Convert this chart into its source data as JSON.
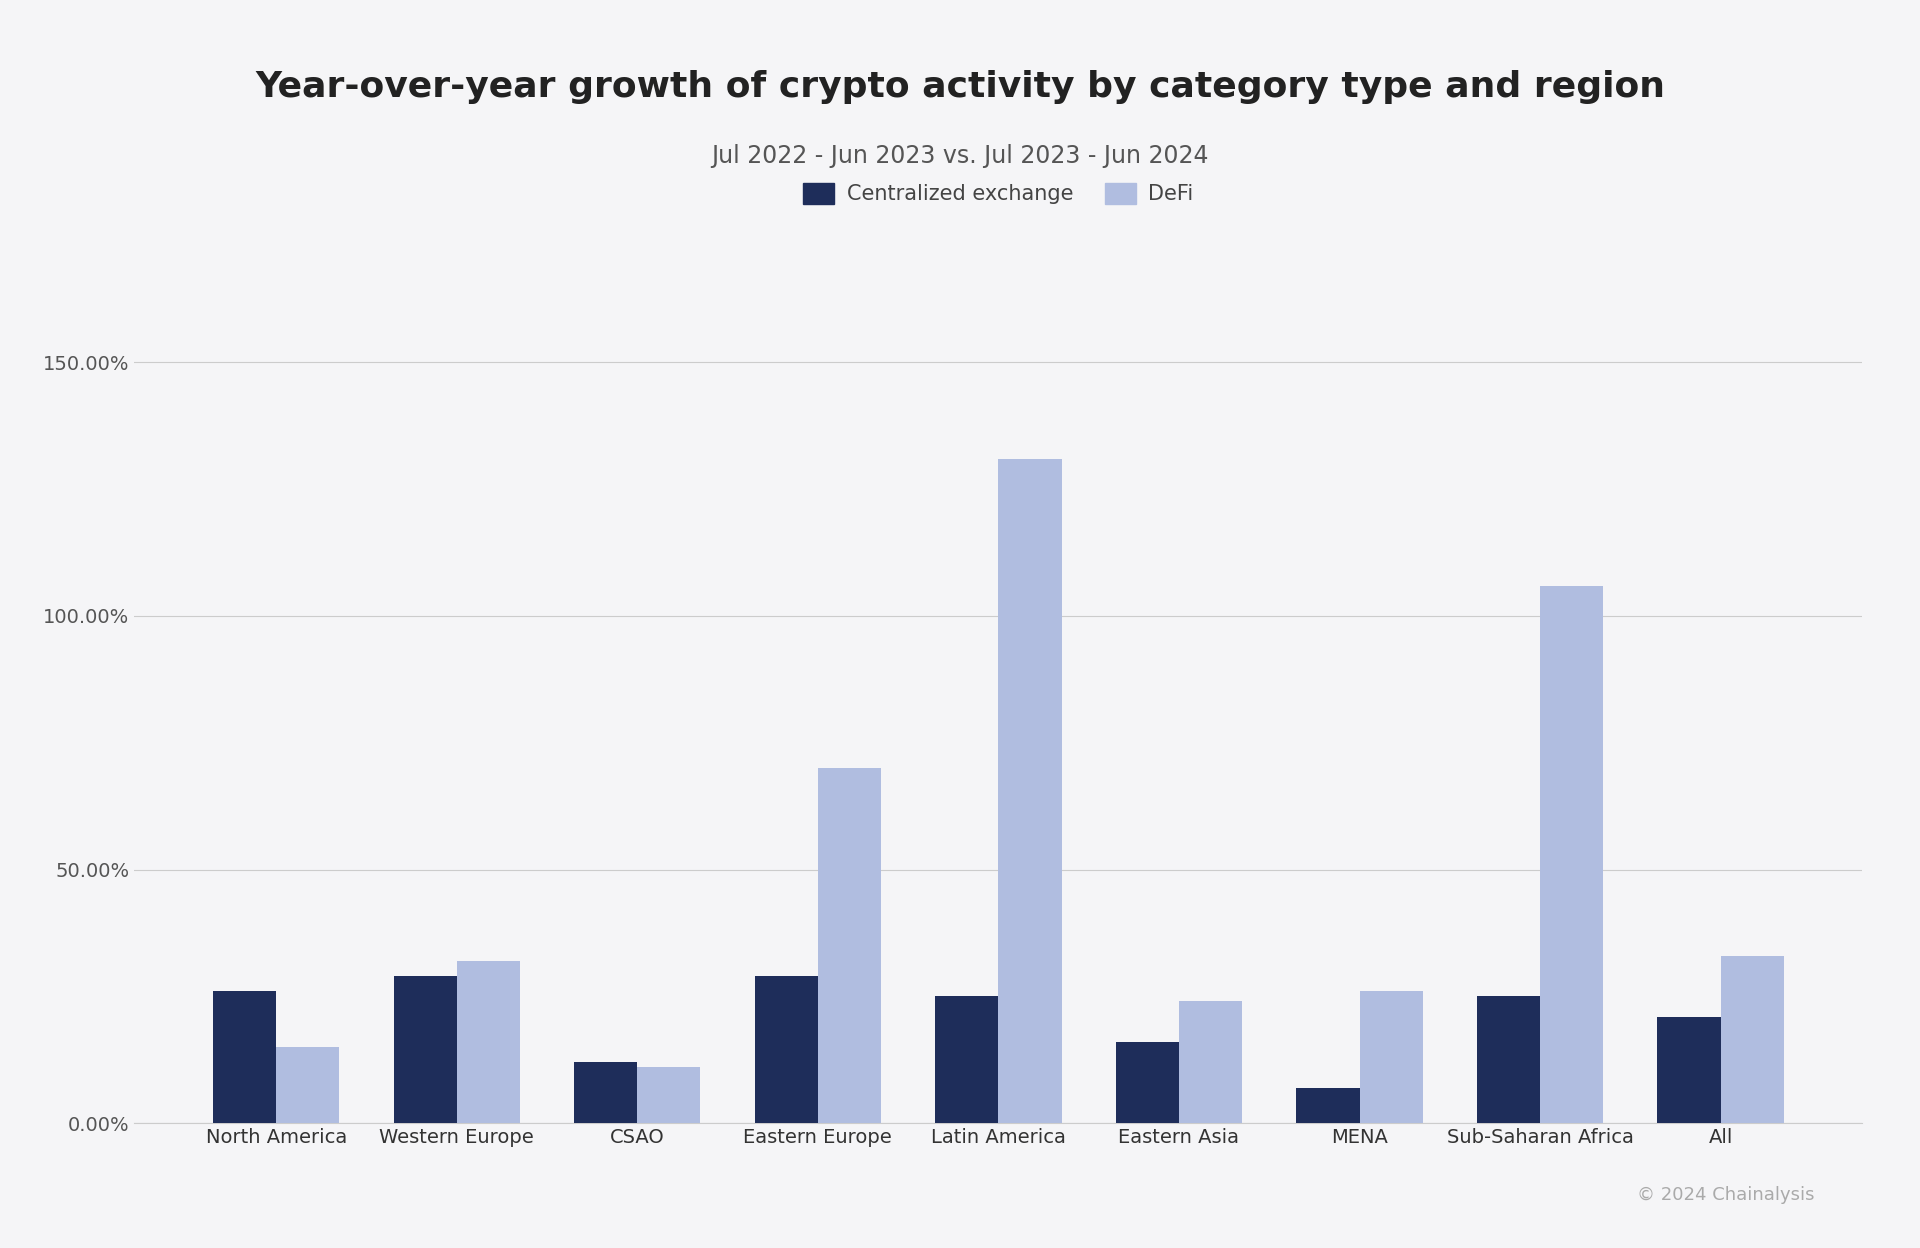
{
  "title": "Year-over-year growth of crypto activity by category type and region",
  "subtitle": "Jul 2022 - Jun 2023 vs. Jul 2023 - Jun 2024",
  "categories": [
    "North America",
    "Western Europe",
    "CSAO",
    "Eastern Europe",
    "Latin America",
    "Eastern Asia",
    "MENA",
    "Sub-Saharan Africa",
    "All"
  ],
  "centralized_exchange": [
    0.26,
    0.29,
    0.12,
    0.29,
    0.25,
    0.16,
    0.07,
    0.25,
    0.21
  ],
  "defi": [
    0.15,
    0.32,
    0.11,
    0.7,
    1.31,
    0.24,
    0.26,
    1.06,
    0.33
  ],
  "ce_color": "#1e2d5a",
  "defi_color": "#b0bde0",
  "background_color": "#f5f5f7",
  "yticks": [
    0.0,
    0.5,
    1.0,
    1.5
  ],
  "ytick_labels": [
    "0.00%",
    "50.00%",
    "100.00%",
    "150.00%"
  ],
  "ylim": [
    0,
    1.55
  ],
  "grid_color": "#cccccc",
  "title_fontsize": 26,
  "subtitle_fontsize": 17,
  "tick_fontsize": 14,
  "legend_fontsize": 15,
  "bar_width": 0.35,
  "copyright_text": "© 2024 Chainalysis",
  "copyright_color": "#aaaaaa",
  "copyright_fontsize": 13
}
